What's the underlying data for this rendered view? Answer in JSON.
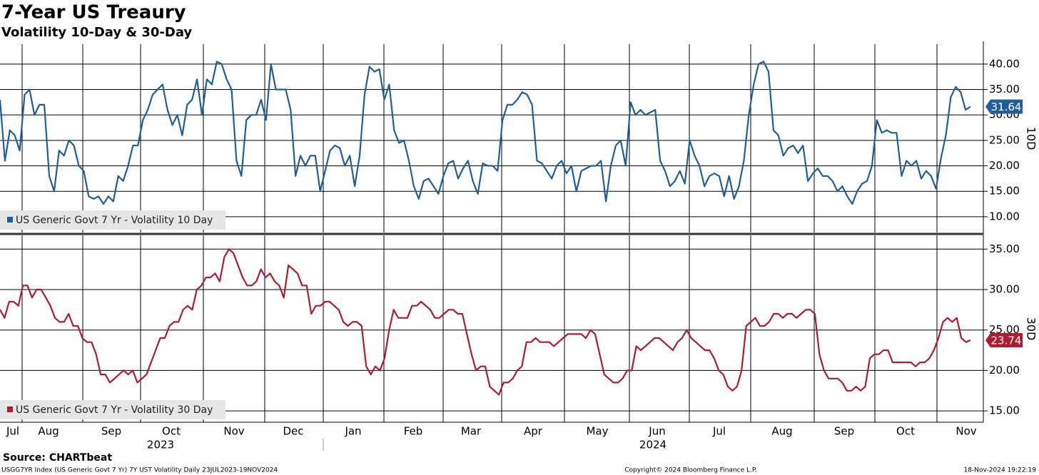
{
  "title": "7-Year US Treaury",
  "subtitle": "Volatility 10-Day & 30-Day",
  "x_axis": {
    "categories": [
      "Jul",
      "Aug",
      "Sep",
      "Oct",
      "Nov",
      "Dec",
      "Jan",
      "Feb",
      "Mar",
      "Apr",
      "May",
      "Jun",
      "Jul",
      "Aug",
      "Sep",
      "Oct",
      "Nov"
    ],
    "years": [
      "2023",
      "2024"
    ]
  },
  "source": "Source: CHARTbeat",
  "footer": {
    "left": "USGG7YR Index (US Generic Govt 7 Yr) 7Y UST Volatility  Daily 23JUL2023-19NOV2024",
    "center": "Copyright© 2024 Bloomberg Finance L.P.",
    "right": "18-Nov-2024 19:22:19"
  },
  "chart_data": [
    {
      "type": "line",
      "y_label": "10D",
      "ylim": [
        6.9,
        43.9
      ],
      "grid": true,
      "legend": "bottom-left",
      "yticks": [
        {
          "value": 10,
          "label": "10.00"
        },
        {
          "value": 15,
          "label": "15.00"
        },
        {
          "value": 20,
          "label": "20.00"
        },
        {
          "value": 25,
          "label": "25.00"
        },
        {
          "value": 30,
          "label": "30.00"
        },
        {
          "value": 35,
          "label": "35.00"
        },
        {
          "value": 40,
          "label": "40.00"
        }
      ],
      "series": [
        {
          "name": "US Generic Govt 7 Yr - Volatility 10 Day",
          "color": "#1f5f99",
          "values": [
            33,
            21,
            27,
            26,
            23,
            34,
            35,
            30,
            32,
            32,
            18,
            15,
            23,
            22,
            25,
            24,
            20,
            19,
            14,
            13.5,
            14,
            12.5,
            14,
            13,
            18,
            17,
            20,
            24,
            24,
            29,
            31,
            34,
            35,
            36,
            31,
            28,
            30,
            26,
            32,
            33,
            37,
            30,
            37,
            36,
            40.5,
            40,
            37,
            35,
            21,
            18,
            29,
            30,
            30,
            33,
            29,
            40,
            35,
            35,
            35,
            31,
            18,
            22,
            20,
            22,
            22,
            15,
            19,
            23,
            24,
            23.5,
            20,
            22,
            16,
            22,
            34,
            39.5,
            38.5,
            39,
            33,
            36,
            27,
            24.5,
            25,
            21,
            16,
            13.5,
            17,
            17.5,
            16,
            14.5,
            18,
            20.5,
            21,
            17.5,
            19.5,
            21,
            17,
            14.5,
            20.5,
            20,
            20,
            19,
            29,
            32,
            32,
            33,
            34.5,
            34,
            32,
            21,
            20.5,
            19,
            17.5,
            20,
            21,
            18.5,
            20,
            15,
            19,
            19.5,
            20,
            20,
            21,
            13,
            20,
            24,
            25,
            20,
            32.5,
            30,
            31,
            30,
            30.5,
            31,
            21,
            19,
            16,
            17,
            19,
            16.5,
            25,
            22,
            20,
            16,
            18,
            18.5,
            18,
            14,
            18,
            13.5,
            16,
            21,
            30,
            36,
            40,
            40.5,
            38.5,
            27,
            26,
            22,
            23.5,
            24,
            22.5,
            24,
            17,
            18.5,
            19.5,
            18,
            18,
            17,
            15,
            16,
            14,
            12.5,
            15,
            16.5,
            17,
            20,
            29,
            26.5,
            27,
            26.5,
            26.5,
            18,
            21,
            20,
            21,
            17.5,
            19,
            18,
            15.5,
            21.5,
            26,
            33.5,
            35.5,
            34.5,
            31,
            31.64
          ]
        }
      ]
    },
    {
      "type": "line",
      "y_label": "30D",
      "ylim": [
        13.6,
        36.7
      ],
      "grid": true,
      "legend": "bottom-left",
      "yticks": [
        {
          "value": 15,
          "label": "15.00"
        },
        {
          "value": 20,
          "label": "20.00"
        },
        {
          "value": 25,
          "label": "25.00"
        },
        {
          "value": 30,
          "label": "30.00"
        },
        {
          "value": 35,
          "label": "35.00"
        }
      ],
      "series": [
        {
          "name": "US Generic Govt 7 Yr - Volatility 30 Day",
          "color": "#b01c2e",
          "values": [
            27.5,
            26.5,
            28.5,
            28.5,
            28,
            30.5,
            30.5,
            29,
            30,
            30,
            29,
            28,
            26.5,
            26,
            26,
            27,
            25.5,
            25.5,
            24,
            23.5,
            23.5,
            22,
            19.5,
            19.5,
            18.5,
            19,
            19.5,
            20,
            19.5,
            20,
            18.5,
            19,
            19.5,
            21,
            22.5,
            24,
            24,
            25.5,
            26,
            26,
            27.5,
            28,
            27.5,
            30,
            30.5,
            31.5,
            31.5,
            32,
            31,
            34,
            35,
            34.5,
            33,
            31.5,
            30.5,
            30.5,
            31,
            32.5,
            31.5,
            32,
            31,
            30.5,
            29,
            33,
            32.5,
            32,
            30.5,
            30.5,
            27,
            28,
            28,
            28.5,
            28.5,
            28,
            27.5,
            26,
            25.5,
            26,
            26,
            25.5,
            20.5,
            19.5,
            20.5,
            20,
            21.5,
            25,
            27.5,
            26.5,
            26.5,
            26.5,
            28,
            28,
            28.5,
            28,
            27.5,
            26.5,
            26.5,
            27,
            27.5,
            27.5,
            27,
            27,
            24.5,
            22,
            20,
            20.5,
            20.5,
            18,
            17.5,
            17,
            18.5,
            18.5,
            19,
            20,
            20.5,
            23.5,
            23.5,
            24,
            23.5,
            23.5,
            23.5,
            23,
            23.5,
            24,
            24.5,
            24.5,
            24.5,
            24.5,
            24,
            25,
            24.5,
            22,
            19.5,
            19,
            18.5,
            18.5,
            19,
            20,
            20,
            23,
            22.5,
            23,
            23.5,
            24,
            24,
            23.5,
            23,
            22.5,
            23.5,
            24,
            25,
            24,
            23.5,
            23,
            22.5,
            22.5,
            21.5,
            20,
            19.5,
            18,
            17.5,
            18,
            20,
            25.5,
            26,
            26.5,
            25.5,
            25.5,
            26,
            27,
            27,
            26.5,
            27,
            27,
            26.5,
            27,
            27.5,
            27.5,
            27,
            22,
            20,
            19,
            19,
            19,
            18.5,
            17.5,
            17.5,
            18,
            17.5,
            18,
            21.5,
            22,
            22,
            22.5,
            22.5,
            21,
            21,
            21,
            21,
            21,
            20.5,
            21,
            21,
            21.5,
            22.5,
            24,
            26,
            26.5,
            26,
            26.5,
            24,
            23.5,
            23.74
          ]
        }
      ]
    }
  ]
}
